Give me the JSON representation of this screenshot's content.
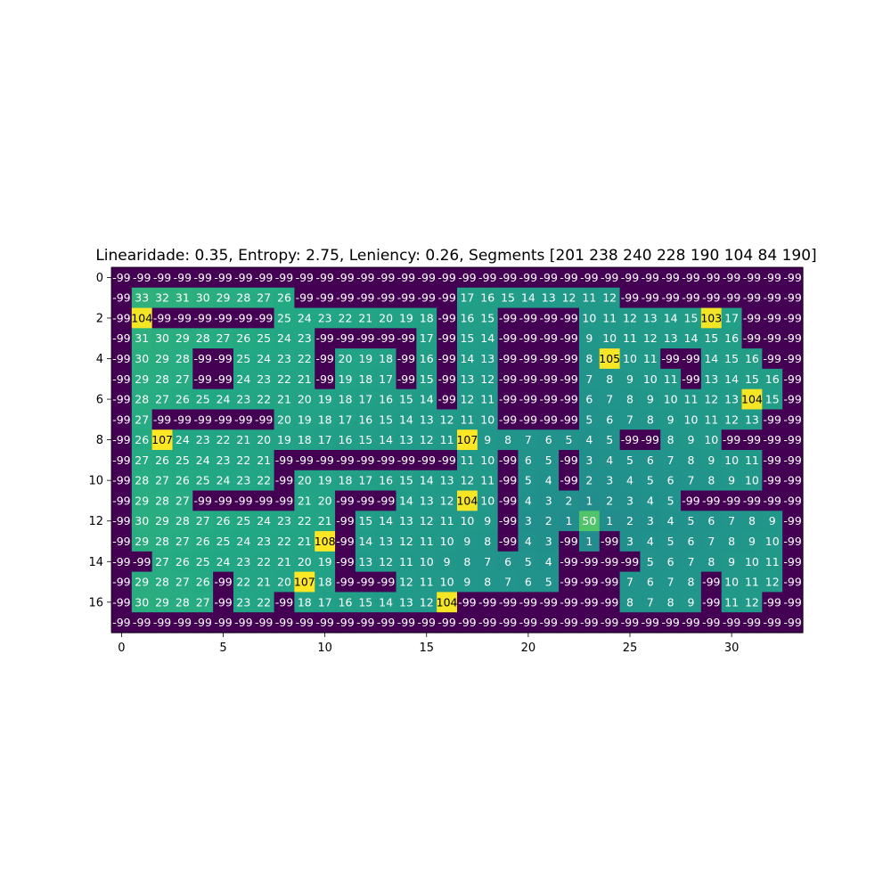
{
  "chart_data": {
    "type": "heatmap",
    "title": "Linearidade: 0.35, Entropy: 2.75, Leniency: 0.26, Segments [201 238 240 228 190 104  84 190]",
    "xlabel": "",
    "ylabel": "",
    "x_ticks": [
      0,
      5,
      10,
      15,
      20,
      25,
      30
    ],
    "y_ticks": [
      0,
      2,
      4,
      6,
      8,
      10,
      12,
      14,
      16
    ],
    "colormap": "viridis",
    "vmin": -99,
    "vmax": 107,
    "values": [
      [
        -99,
        -99,
        -99,
        -99,
        -99,
        -99,
        -99,
        -99,
        -99,
        -99,
        -99,
        -99,
        -99,
        -99,
        -99,
        -99,
        -99,
        -99,
        -99,
        -99,
        -99,
        -99,
        -99,
        -99,
        -99,
        -99,
        -99,
        -99,
        -99,
        -99,
        -99,
        -99,
        -99,
        -99
      ],
      [
        -99,
        33,
        32,
        31,
        30,
        29,
        28,
        27,
        26,
        -99,
        -99,
        -99,
        -99,
        -99,
        -99,
        -99,
        -99,
        17,
        16,
        15,
        14,
        13,
        12,
        11,
        12,
        -99,
        -99,
        -99,
        -99,
        -99,
        -99,
        -99,
        -99,
        -99
      ],
      [
        -99,
        104,
        -99,
        -99,
        -99,
        -99,
        -99,
        -99,
        25,
        24,
        23,
        22,
        21,
        20,
        19,
        18,
        -99,
        16,
        15,
        -99,
        -99,
        -99,
        -99,
        10,
        11,
        12,
        13,
        14,
        15,
        103,
        17,
        -99,
        -99,
        -99
      ],
      [
        -99,
        31,
        30,
        29,
        28,
        27,
        26,
        25,
        24,
        23,
        -99,
        -99,
        -99,
        -99,
        -99,
        17,
        -99,
        15,
        14,
        -99,
        -99,
        -99,
        -99,
        9,
        10,
        11,
        12,
        13,
        14,
        15,
        16,
        -99,
        -99,
        -99
      ],
      [
        -99,
        30,
        29,
        28,
        -99,
        -99,
        25,
        24,
        23,
        22,
        -99,
        20,
        19,
        18,
        -99,
        16,
        -99,
        14,
        13,
        -99,
        -99,
        -99,
        -99,
        8,
        105,
        10,
        11,
        -99,
        -99,
        14,
        15,
        16,
        -99,
        -99
      ],
      [
        -99,
        29,
        28,
        27,
        -99,
        -99,
        24,
        23,
        22,
        21,
        -99,
        19,
        18,
        17,
        -99,
        15,
        -99,
        13,
        12,
        -99,
        -99,
        -99,
        -99,
        7,
        8,
        9,
        10,
        11,
        -99,
        13,
        14,
        15,
        16,
        -99
      ],
      [
        -99,
        28,
        27,
        26,
        25,
        24,
        23,
        22,
        21,
        20,
        19,
        18,
        17,
        16,
        15,
        14,
        -99,
        12,
        11,
        -99,
        -99,
        -99,
        -99,
        6,
        7,
        8,
        9,
        10,
        11,
        12,
        13,
        104,
        15,
        -99
      ],
      [
        -99,
        27,
        -99,
        -99,
        -99,
        -99,
        -99,
        -99,
        20,
        19,
        18,
        17,
        16,
        15,
        14,
        13,
        12,
        11,
        10,
        -99,
        -99,
        -99,
        -99,
        5,
        6,
        7,
        8,
        9,
        10,
        11,
        12,
        13,
        -99,
        -99
      ],
      [
        -99,
        26,
        107,
        24,
        23,
        22,
        21,
        20,
        19,
        18,
        17,
        16,
        15,
        14,
        13,
        12,
        11,
        107,
        9,
        8,
        7,
        6,
        5,
        4,
        5,
        -99,
        -99,
        8,
        9,
        10,
        -99,
        -99,
        -99,
        -99
      ],
      [
        -99,
        27,
        26,
        25,
        24,
        23,
        22,
        21,
        -99,
        -99,
        -99,
        -99,
        -99,
        -99,
        -99,
        -99,
        -99,
        11,
        10,
        -99,
        6,
        5,
        -99,
        3,
        4,
        5,
        6,
        7,
        8,
        9,
        10,
        11,
        -99,
        -99
      ],
      [
        -99,
        28,
        27,
        26,
        25,
        24,
        23,
        22,
        -99,
        20,
        19,
        18,
        17,
        16,
        15,
        14,
        13,
        12,
        11,
        -99,
        5,
        4,
        -99,
        2,
        3,
        4,
        5,
        6,
        7,
        8,
        9,
        10,
        -99,
        -99
      ],
      [
        -99,
        29,
        28,
        27,
        -99,
        -99,
        -99,
        -99,
        -99,
        21,
        20,
        -99,
        -99,
        -99,
        14,
        13,
        12,
        104,
        10,
        -99,
        4,
        3,
        2,
        1,
        2,
        3,
        4,
        5,
        -99,
        -99,
        -99,
        -99,
        -99,
        -99
      ],
      [
        -99,
        30,
        29,
        28,
        27,
        26,
        25,
        24,
        23,
        22,
        21,
        -99,
        15,
        14,
        13,
        12,
        11,
        10,
        9,
        -99,
        3,
        2,
        1,
        50,
        1,
        2,
        3,
        4,
        5,
        6,
        7,
        8,
        9,
        -99
      ],
      [
        -99,
        29,
        28,
        27,
        26,
        25,
        24,
        23,
        22,
        21,
        108,
        -99,
        14,
        13,
        12,
        11,
        10,
        9,
        8,
        -99,
        4,
        3,
        -99,
        1,
        -99,
        3,
        4,
        5,
        6,
        7,
        8,
        9,
        10,
        -99
      ],
      [
        -99,
        -99,
        27,
        26,
        25,
        24,
        23,
        22,
        21,
        20,
        19,
        -99,
        13,
        12,
        11,
        10,
        9,
        8,
        7,
        6,
        5,
        4,
        -99,
        -99,
        -99,
        -99,
        5,
        6,
        7,
        8,
        9,
        10,
        11,
        -99
      ],
      [
        -99,
        29,
        28,
        27,
        26,
        -99,
        22,
        21,
        20,
        107,
        18,
        -99,
        -99,
        -99,
        12,
        11,
        10,
        9,
        8,
        7,
        6,
        5,
        -99,
        -99,
        -99,
        7,
        6,
        7,
        8,
        -99,
        10,
        11,
        12,
        -99
      ],
      [
        -99,
        30,
        29,
        28,
        27,
        -99,
        23,
        22,
        -99,
        18,
        17,
        16,
        15,
        14,
        13,
        12,
        104,
        -99,
        -99,
        -99,
        -99,
        -99,
        -99,
        -99,
        -99,
        8,
        7,
        8,
        9,
        -99,
        11,
        12,
        -99,
        -99
      ],
      [
        -99,
        -99,
        -99,
        -99,
        -99,
        -99,
        -99,
        -99,
        -99,
        -99,
        -99,
        -99,
        -99,
        -99,
        -99,
        -99,
        -99,
        -99,
        -99,
        -99,
        -99,
        -99,
        -99,
        -99,
        -99,
        -99,
        -99,
        -99,
        -99,
        -99,
        -99,
        -99,
        -99,
        -99
      ]
    ]
  }
}
